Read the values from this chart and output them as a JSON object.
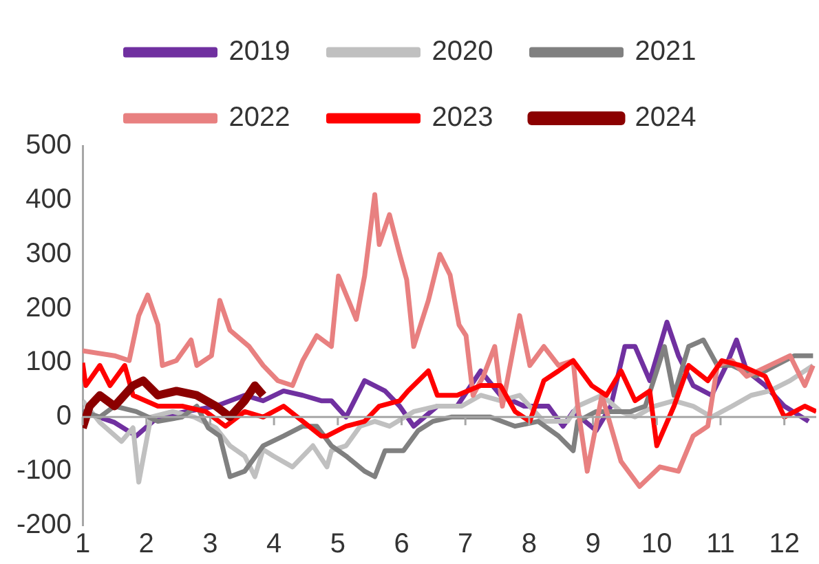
{
  "chart_data": {
    "type": "line",
    "xlim": [
      1,
      12.5
    ],
    "xticks": [
      1,
      2,
      3,
      4,
      5,
      6,
      7,
      8,
      9,
      10,
      11,
      12
    ],
    "ylim": [
      -200,
      500
    ],
    "yticks": [
      -200,
      -100,
      0,
      100,
      200,
      300,
      400,
      500
    ],
    "grid": false,
    "legend": "top",
    "ref_lines": [
      {
        "axis": "y",
        "value": 0,
        "color": "#a6a6a6"
      }
    ],
    "series": [
      {
        "name": "2019",
        "color": "#7030a0",
        "x": [
          1.0,
          1.5,
          1.84,
          2.18,
          2.63,
          3.09,
          3.54,
          3.83,
          4.15,
          4.45,
          4.74,
          4.9,
          5.13,
          5.42,
          5.74,
          5.97,
          6.19,
          6.56,
          6.87,
          7.24,
          7.55,
          7.92,
          8.3,
          8.53,
          8.69,
          9.05,
          9.28,
          9.5,
          9.66,
          9.89,
          10.16,
          10.34,
          10.57,
          10.86,
          11.09,
          11.25,
          11.41,
          11.7,
          12.0,
          12.38
        ],
        "values": [
          10,
          -10,
          -35,
          0,
          10,
          20,
          40,
          30,
          48,
          40,
          30,
          30,
          0,
          67,
          48,
          20,
          -17,
          20,
          20,
          85,
          40,
          20,
          20,
          -17,
          10,
          -25,
          20,
          130,
          130,
          67,
          175,
          113,
          58,
          40,
          95,
          142,
          85,
          58,
          20,
          -8
        ]
      },
      {
        "name": "2020",
        "color": "#c0c0c0",
        "x": [
          1.0,
          1.27,
          1.61,
          1.79,
          1.88,
          2.07,
          2.41,
          2.75,
          3.09,
          3.31,
          3.54,
          3.7,
          3.83,
          3.99,
          4.29,
          4.61,
          4.83,
          4.9,
          5.13,
          5.35,
          5.58,
          5.81,
          6.19,
          6.56,
          6.94,
          7.24,
          7.55,
          7.85,
          8.23,
          8.6,
          8.76,
          9.14,
          9.44,
          9.66,
          9.96,
          10.27,
          10.57,
          10.86,
          11.18,
          11.48,
          11.77,
          12.09,
          12.45
        ],
        "values": [
          30,
          -10,
          -45,
          -20,
          -120,
          0,
          10,
          0,
          -20,
          -53,
          -72,
          -110,
          -60,
          -72,
          -92,
          -53,
          -92,
          -62,
          -53,
          -17,
          -8,
          -17,
          10,
          20,
          20,
          40,
          30,
          40,
          -8,
          -8,
          20,
          40,
          10,
          0,
          20,
          30,
          20,
          0,
          20,
          40,
          48,
          67,
          95
        ]
      },
      {
        "name": "2021",
        "color": "#808080",
        "x": [
          1.0,
          1.27,
          1.5,
          1.84,
          2.18,
          2.56,
          2.79,
          2.97,
          3.15,
          3.31,
          3.54,
          3.83,
          4.15,
          4.45,
          4.67,
          4.9,
          5.13,
          5.42,
          5.58,
          5.74,
          6.03,
          6.26,
          6.49,
          6.78,
          7.1,
          7.39,
          7.78,
          8.14,
          8.46,
          8.69,
          8.76,
          9.05,
          9.28,
          9.59,
          9.82,
          10.0,
          10.12,
          10.27,
          10.5,
          10.73,
          10.95,
          11.18,
          11.54,
          11.86,
          12.16,
          12.45
        ],
        "values": [
          10,
          0,
          20,
          10,
          -8,
          0,
          20,
          -20,
          -35,
          -110,
          -100,
          -53,
          -35,
          -17,
          -17,
          -53,
          -72,
          -100,
          -110,
          -62,
          -62,
          -25,
          -8,
          0,
          0,
          0,
          -17,
          -8,
          -35,
          -62,
          -8,
          10,
          10,
          10,
          20,
          85,
          130,
          40,
          130,
          142,
          95,
          95,
          75,
          95,
          113,
          113
        ]
      },
      {
        "name": "2022",
        "color": "#e88080",
        "x": [
          1.0,
          1.5,
          1.73,
          1.88,
          2.02,
          2.18,
          2.25,
          2.47,
          2.7,
          2.79,
          3.02,
          3.15,
          3.31,
          3.61,
          3.83,
          4.06,
          4.29,
          4.45,
          4.67,
          4.9,
          5.01,
          5.29,
          5.42,
          5.58,
          5.65,
          5.81,
          5.97,
          6.08,
          6.19,
          6.42,
          6.6,
          6.76,
          6.9,
          7.01,
          7.12,
          7.28,
          7.46,
          7.58,
          7.85,
          8.01,
          8.23,
          8.46,
          8.69,
          8.76,
          8.91,
          9.14,
          9.44,
          9.73,
          10.05,
          10.34,
          10.57,
          10.8,
          10.95,
          11.18,
          11.41,
          12.09,
          12.32,
          12.45
        ],
        "values": [
          122,
          113,
          104,
          187,
          225,
          170,
          95,
          104,
          142,
          95,
          113,
          215,
          160,
          130,
          95,
          67,
          58,
          104,
          150,
          130,
          260,
          180,
          260,
          410,
          318,
          373,
          300,
          253,
          130,
          215,
          300,
          262,
          170,
          150,
          40,
          75,
          130,
          20,
          187,
          95,
          130,
          95,
          104,
          20,
          -100,
          40,
          -82,
          -128,
          -92,
          -100,
          -35,
          -17,
          95,
          104,
          75,
          113,
          58,
          95
        ]
      },
      {
        "name": "2023",
        "color": "#ff0000",
        "x": [
          1.0,
          1.05,
          1.27,
          1.43,
          1.66,
          1.79,
          2.18,
          2.56,
          2.93,
          3.24,
          3.54,
          3.83,
          4.15,
          4.45,
          4.74,
          4.83,
          5.13,
          5.42,
          5.65,
          5.97,
          6.1,
          6.42,
          6.56,
          6.87,
          7.24,
          7.55,
          7.78,
          8.01,
          8.23,
          8.46,
          8.69,
          8.98,
          9.21,
          9.44,
          9.66,
          9.89,
          10.0,
          10.27,
          10.5,
          10.8,
          11.02,
          11.32,
          11.7,
          12.0,
          12.32,
          12.5
        ],
        "values": [
          100,
          58,
          95,
          58,
          95,
          40,
          20,
          20,
          10,
          -17,
          10,
          0,
          20,
          -8,
          -35,
          -35,
          -17,
          -8,
          20,
          30,
          48,
          85,
          40,
          40,
          58,
          58,
          10,
          -8,
          67,
          85,
          104,
          58,
          40,
          85,
          30,
          48,
          -53,
          20,
          95,
          67,
          104,
          95,
          75,
          0,
          20,
          10
        ]
      },
      {
        "name": "2024",
        "color": "#8b0000",
        "x": [
          1.0,
          1.11,
          1.27,
          1.5,
          1.79,
          1.95,
          2.18,
          2.47,
          2.79,
          3.09,
          3.31,
          3.54,
          3.7,
          3.83
        ],
        "values": [
          -20,
          20,
          40,
          20,
          58,
          67,
          40,
          48,
          40,
          20,
          0,
          30,
          58,
          40
        ]
      }
    ]
  }
}
